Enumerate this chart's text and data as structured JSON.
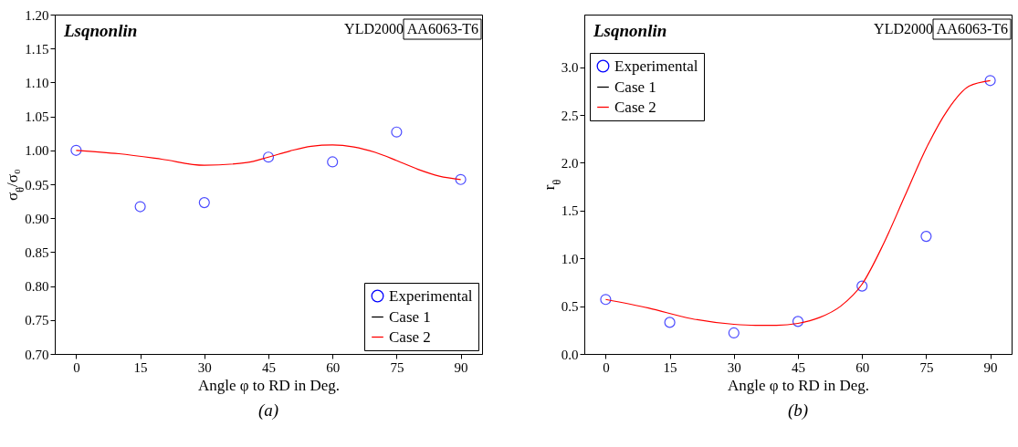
{
  "chart_data": [
    {
      "type": "scatter",
      "xlabel": "Angle φ to RD in Deg.",
      "ylabel": "σ$_{θ}$/σ₀",
      "xlim": [
        -5,
        95
      ],
      "xticks": [
        0,
        15,
        30,
        45,
        60,
        75,
        90
      ],
      "ylim": [
        0.7,
        1.2
      ],
      "yticks": [
        {
          "value": 0.7,
          "label": "0.70"
        },
        {
          "value": 0.75,
          "label": "0.75"
        },
        {
          "value": 0.8,
          "label": "0.80"
        },
        {
          "value": 0.85,
          "label": "0.85"
        },
        {
          "value": 0.9,
          "label": "0.90"
        },
        {
          "value": 0.95,
          "label": "0.95"
        },
        {
          "value": 1.0,
          "label": "1.00"
        },
        {
          "value": 1.05,
          "label": "1.05"
        },
        {
          "value": 1.1,
          "label": "1.10"
        },
        {
          "value": 1.15,
          "label": "1.15"
        },
        {
          "value": 1.2,
          "label": "1.20"
        }
      ],
      "legend": "bottom right",
      "annotations": [
        "Lsqnonlin",
        "YLD2000",
        "AA6063-T6",
        "(a)"
      ],
      "series": [
        {
          "name": "Experimental",
          "type": "scatter",
          "color": "#0000ff",
          "x": [
            0,
            15,
            30,
            45,
            60,
            75,
            90
          ],
          "values": [
            1.0,
            0.917,
            0.923,
            0.99,
            0.983,
            1.027,
            0.957
          ]
        },
        {
          "name": "Case 1",
          "type": "line",
          "color": "#000000"
        },
        {
          "name": "Case 2",
          "type": "line",
          "color": "#ff0000",
          "x": [
            0,
            10,
            20,
            30,
            40,
            45,
            50,
            55,
            60,
            65,
            70,
            75,
            80,
            85,
            90
          ],
          "values": [
            1.0,
            0.995,
            0.987,
            0.978,
            0.982,
            0.99,
            0.999,
            1.006,
            1.008,
            1.005,
            0.997,
            0.985,
            0.972,
            0.962,
            0.957
          ]
        }
      ]
    },
    {
      "type": "scatter",
      "xlabel": "Angle φ to RD in Deg.",
      "ylabel": "r$_{θ}$",
      "xlim": [
        -5,
        95
      ],
      "xticks": [
        0,
        15,
        30,
        45,
        60,
        75,
        90
      ],
      "ylim": [
        0,
        3.55
      ],
      "yticks": [
        {
          "value": 0,
          "label": "0.0"
        },
        0.5,
        {
          "value": 1,
          "label": "1.0"
        },
        1.5,
        {
          "value": 2,
          "label": "2.0"
        },
        2.5,
        {
          "value": 3,
          "label": "3.0"
        }
      ],
      "legend": "top left",
      "annotations": [
        "Lsqnonlin",
        "YLD2000",
        "AA6063-T6",
        "(b)"
      ],
      "series": [
        {
          "name": "Experimental",
          "type": "scatter",
          "color": "#0000ff",
          "x": [
            0,
            15,
            30,
            45,
            60,
            75,
            90
          ],
          "values": [
            0.57,
            0.33,
            0.22,
            0.34,
            0.71,
            1.23,
            2.86
          ]
        },
        {
          "name": "Case 1",
          "type": "line",
          "color": "#000000"
        },
        {
          "name": "Case 2",
          "type": "line",
          "color": "#ff0000",
          "x": [
            0,
            10,
            20,
            30,
            35,
            40,
            45,
            50,
            55,
            60,
            65,
            70,
            75,
            80,
            85,
            90
          ],
          "values": [
            0.57,
            0.48,
            0.37,
            0.31,
            0.3,
            0.3,
            0.32,
            0.38,
            0.5,
            0.73,
            1.15,
            1.65,
            2.15,
            2.55,
            2.8,
            2.86
          ]
        }
      ]
    }
  ]
}
